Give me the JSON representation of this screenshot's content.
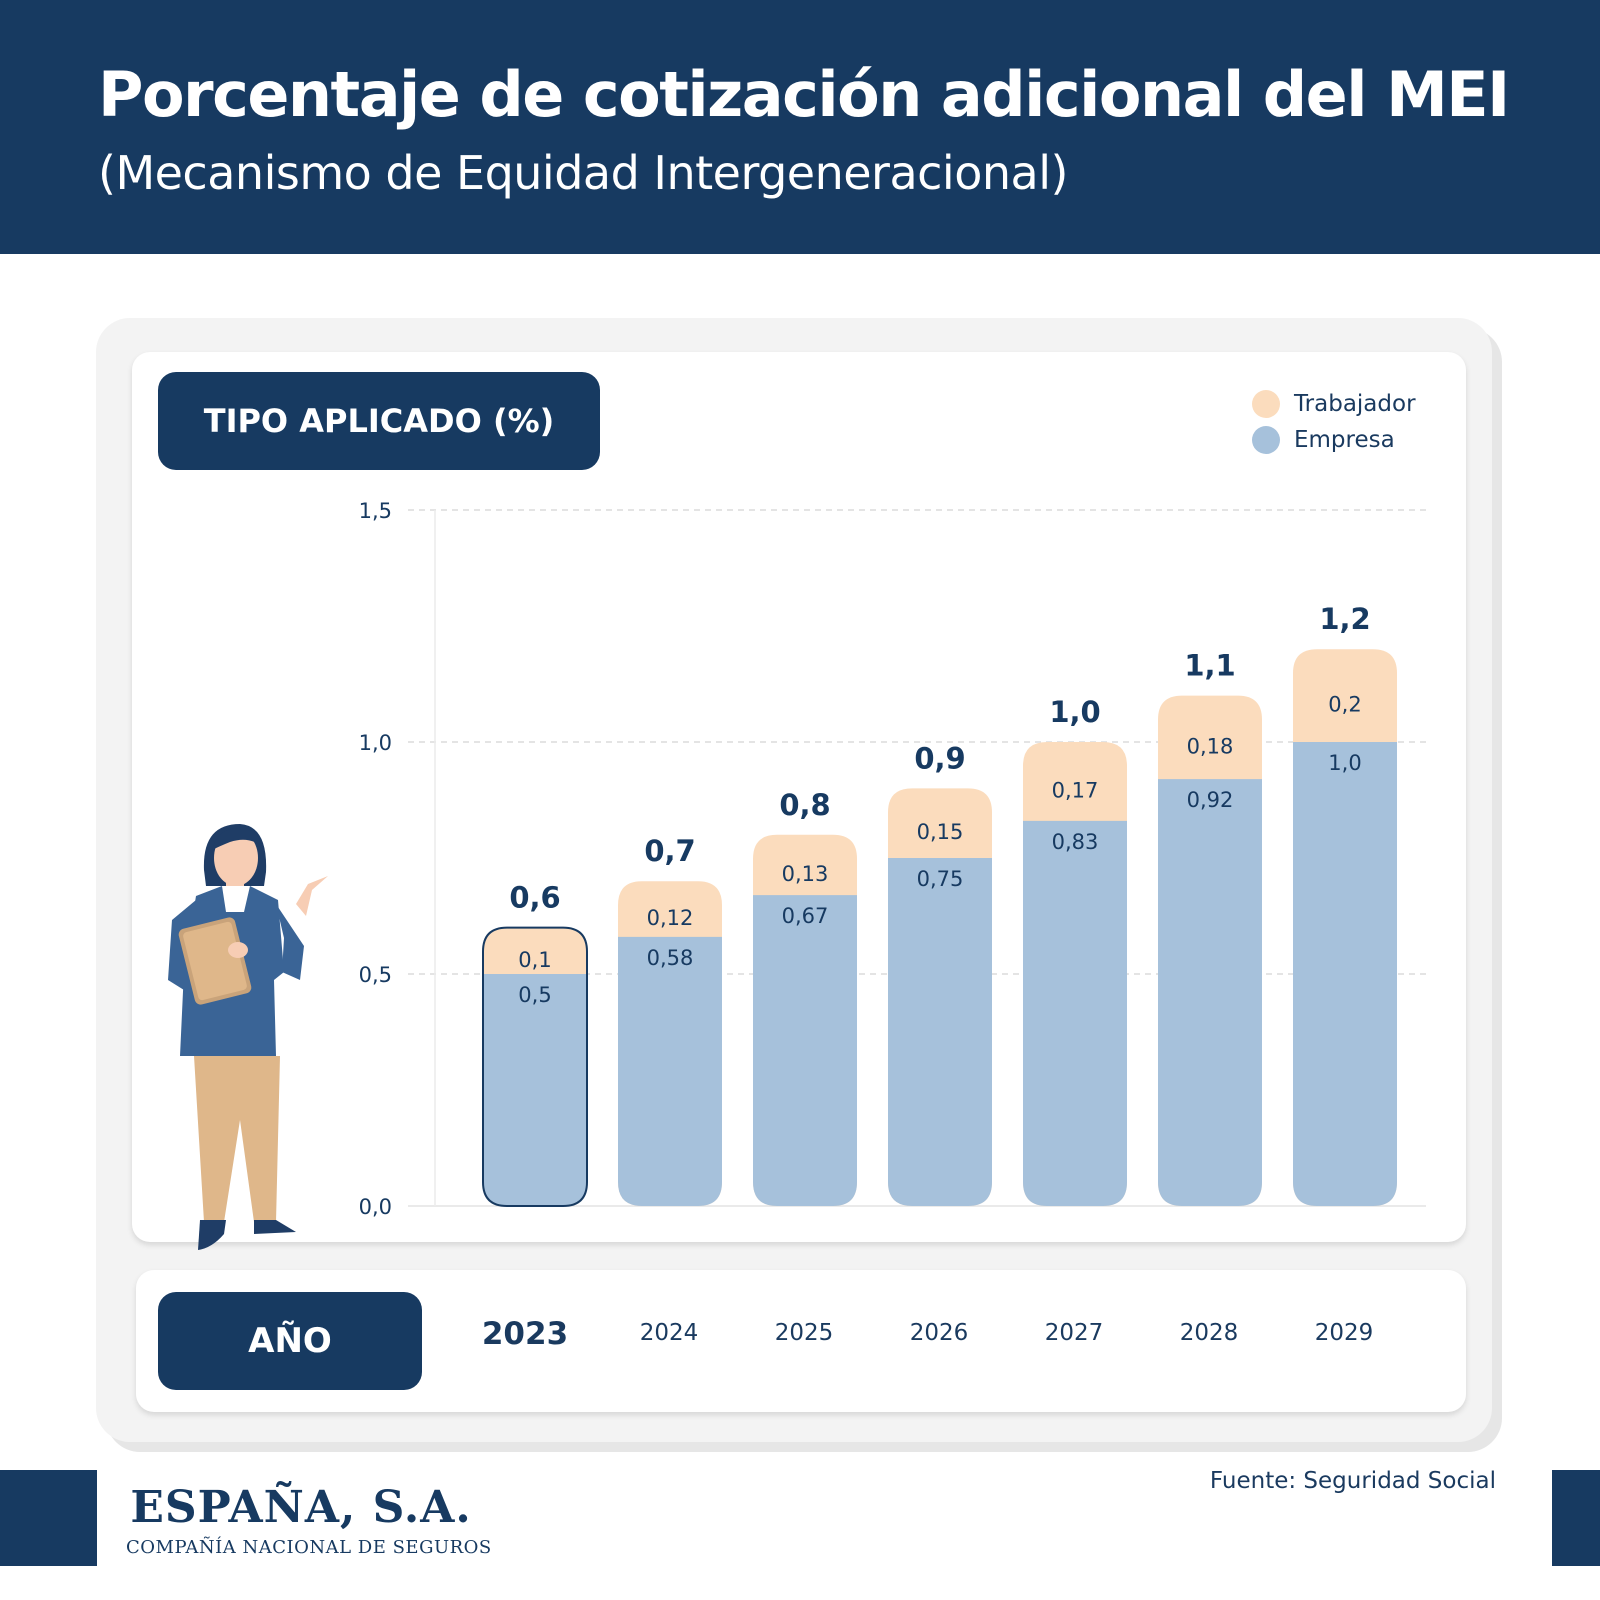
{
  "header": {
    "title": "Porcentaje de cotización adicional del MEI",
    "subtitle": "(Mecanismo de Equidad Intergeneracional)"
  },
  "labels": {
    "y_pill": "TIPO APLICADO (%)",
    "x_pill": "AÑO"
  },
  "legend": [
    {
      "label": "Trabajador",
      "color": "#fbdcbd"
    },
    {
      "label": "Empresa",
      "color": "#a6c1db"
    }
  ],
  "footer": {
    "logo_main": "ESPAÑA, S.A.",
    "logo_sub": "COMPAÑÍA NACIONAL DE SEGUROS",
    "source": "Fuente: Seguridad Social"
  },
  "colors": {
    "navy": "#173a61",
    "empresa": "#a6c1db",
    "trabajador": "#fbdcbd"
  },
  "chart_data": {
    "type": "bar",
    "stacked": true,
    "categories": [
      "2023",
      "2024",
      "2025",
      "2026",
      "2027",
      "2028",
      "2029"
    ],
    "highlight_category": "2023",
    "series": [
      {
        "name": "Empresa",
        "values": [
          0.5,
          0.58,
          0.67,
          0.75,
          0.83,
          0.92,
          1.0
        ],
        "labels": [
          "0,5",
          "0,58",
          "0,67",
          "0,75",
          "0,83",
          "0,92",
          "1,0"
        ]
      },
      {
        "name": "Trabajador",
        "values": [
          0.1,
          0.12,
          0.13,
          0.15,
          0.17,
          0.18,
          0.2
        ],
        "labels": [
          "0,1",
          "0,12",
          "0,13",
          "0,15",
          "0,17",
          "0,18",
          "0,2"
        ]
      }
    ],
    "totals": [
      "0,6",
      "0,7",
      "0,8",
      "0,9",
      "1,0",
      "1,1",
      "1,2"
    ],
    "yticks": [
      "0,0",
      "0,5",
      "1,0",
      "1,5"
    ],
    "ylim": [
      0,
      1.5
    ],
    "grid": true
  }
}
